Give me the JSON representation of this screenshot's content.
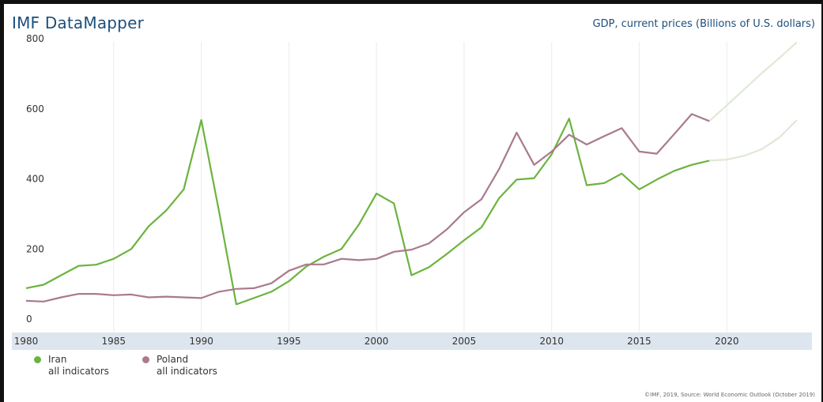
{
  "header": {
    "brand": "IMF DataMapper",
    "indicator": "GDP, current prices (Billions of U.S. dollars)"
  },
  "legend": [
    {
      "name": "Iran",
      "sub": "all indicators",
      "color": "#6cb33f"
    },
    {
      "name": "Poland",
      "sub": "all indicators",
      "color": "#a97a8e"
    }
  ],
  "footer": "©IMF, 2019, Source: World Economic Outlook (October 2019)",
  "colors": {
    "iran": "#6cb33f",
    "poland": "#a97a8e",
    "projection": "#dfe9d6",
    "axis_band": "#dde6ee",
    "grid": "#ebebeb"
  },
  "chart_data": {
    "type": "line",
    "title": "GDP, current prices (Billions of U.S. dollars)",
    "xlabel": "",
    "ylabel": "",
    "xlim": [
      1980,
      2024
    ],
    "ylim": [
      0,
      800
    ],
    "x_ticks": [
      1980,
      1985,
      1990,
      1995,
      2000,
      2005,
      2010,
      2015,
      2020
    ],
    "y_ticks": [
      0,
      200,
      400,
      600,
      800
    ],
    "grid": "vertical",
    "legend_position": "bottom-left",
    "projection_start": 2019,
    "series": [
      {
        "name": "Iran",
        "x": [
          1980,
          1981,
          1982,
          1983,
          1984,
          1985,
          1986,
          1987,
          1988,
          1989,
          1990,
          1991,
          1992,
          1993,
          1994,
          1995,
          1996,
          1997,
          1998,
          1999,
          2000,
          2001,
          2002,
          2003,
          2004,
          2005,
          2006,
          2007,
          2008,
          2009,
          2010,
          2011,
          2012,
          2013,
          2014,
          2015,
          2016,
          2017,
          2018,
          2019,
          2020,
          2021,
          2022,
          2023,
          2024
        ],
        "values": [
          88,
          98,
          125,
          152,
          155,
          172,
          200,
          265,
          310,
          370,
          568,
          310,
          42,
          60,
          78,
          108,
          150,
          178,
          200,
          270,
          358,
          330,
          125,
          148,
          185,
          225,
          262,
          345,
          398,
          402,
          470,
          572,
          382,
          388,
          415,
          370,
          398,
          423,
          440,
          452,
          455,
          466,
          485,
          518,
          568
        ]
      },
      {
        "name": "Poland",
        "x": [
          1980,
          1981,
          1982,
          1983,
          1984,
          1985,
          1986,
          1987,
          1988,
          1989,
          1990,
          1991,
          1992,
          1993,
          1994,
          1995,
          1996,
          1997,
          1998,
          1999,
          2000,
          2001,
          2002,
          2003,
          2004,
          2005,
          2006,
          2007,
          2008,
          2009,
          2010,
          2011,
          2012,
          2013,
          2014,
          2015,
          2016,
          2017,
          2018,
          2019,
          2020,
          2021,
          2022,
          2023,
          2024
        ],
        "values": [
          52,
          50,
          62,
          72,
          72,
          68,
          70,
          62,
          64,
          62,
          60,
          78,
          86,
          88,
          102,
          138,
          156,
          156,
          172,
          168,
          172,
          192,
          198,
          216,
          255,
          305,
          342,
          428,
          532,
          440,
          478,
          526,
          498,
          522,
          545,
          478,
          472,
          528,
          585,
          565,
          610,
          656,
          702,
          745,
          790
        ]
      }
    ]
  }
}
